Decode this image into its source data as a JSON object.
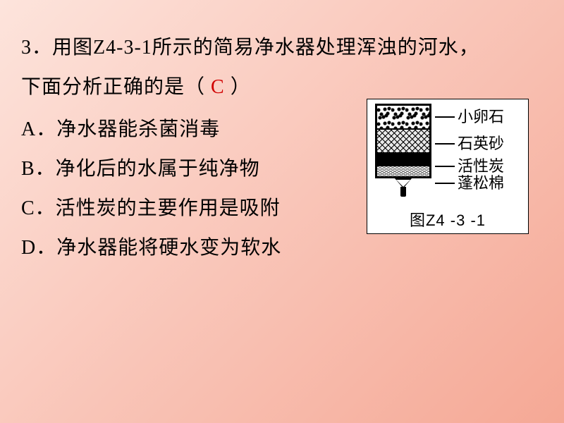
{
  "question": {
    "number": "3．",
    "line1": "用图Z4-3-1所示的简易净水器处理浑浊的河水，",
    "line2_pre": "下面分析正确的是（",
    "answer": "C",
    "line2_post": "）"
  },
  "options": {
    "A": "A．净水器能杀菌消毒",
    "B": "B．净化后的水属于纯净物",
    "C": "C．活性炭的主要作用是吸附",
    "D": "D．净水器能将硬水变为软水"
  },
  "diagram": {
    "labels": {
      "pebbles": "小卵石",
      "sand": "石英砂",
      "carbon": "活性炭",
      "cotton": "蓬松棉"
    },
    "caption": "图Z4 -3 -1"
  }
}
